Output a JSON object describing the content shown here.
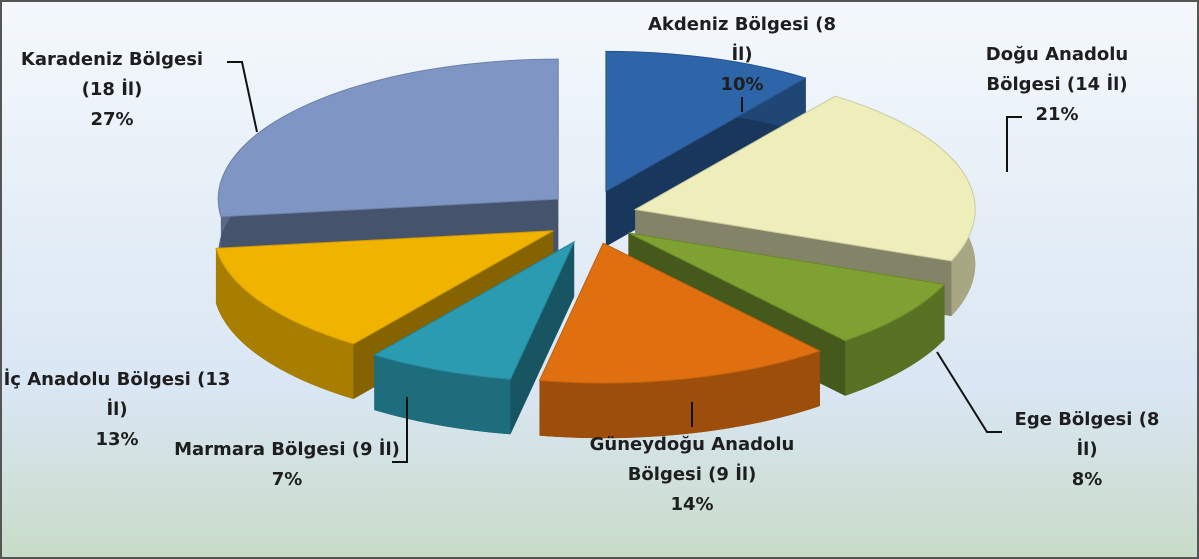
{
  "chart_data": {
    "type": "pie",
    "categories": [
      "Akdeniz Bölgesi (8 İl)",
      "Doğu Anadolu Bölgesi (14 İl)",
      "Ege Bölgesi (8 İl)",
      "Güneydoğu Anadolu Bölgesi (9 İl)",
      "Marmara Bölgesi (9 İl)",
      "İç Anadolu Bölgesi (13 İl)",
      "Karadeniz Bölgesi (18 İl)"
    ],
    "values": [
      10,
      21,
      8,
      14,
      7,
      13,
      27
    ],
    "value_labels": [
      "10%",
      "21%",
      "8%",
      "14%",
      "7%",
      "13%",
      "27%"
    ],
    "colors": [
      "#2e64a8",
      "#eeeebb",
      "#7ea132",
      "#e0700f",
      "#2b9bb2",
      "#f0b400",
      "#7f96c4"
    ]
  }
}
